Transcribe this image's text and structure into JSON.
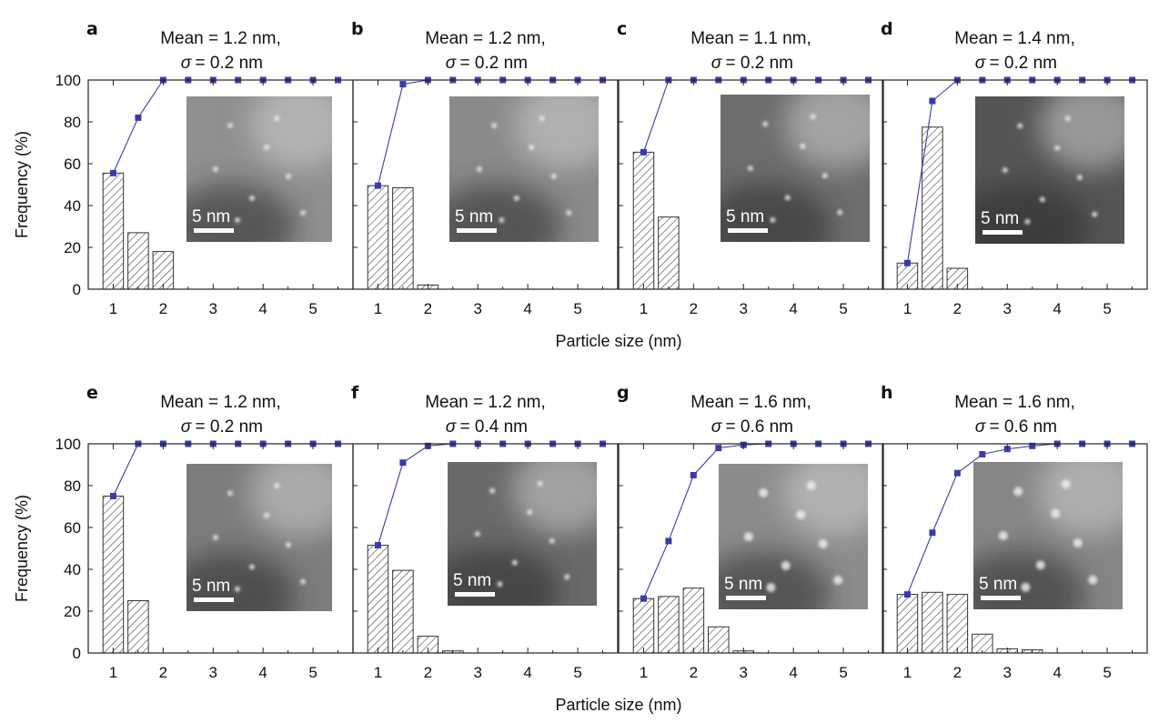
{
  "figure": {
    "ylabel": "Frequency (%)",
    "xlabel": "Particle size (nm)",
    "x_ticks": [
      1,
      2,
      3,
      4,
      5
    ],
    "y_ticks": [
      0,
      20,
      40,
      60,
      80,
      100
    ],
    "scale_bar_label": "5 nm",
    "colors": {
      "cumulative": "#3b3ba8",
      "bar_edge": "#333333"
    }
  },
  "chart_data": [
    {
      "panel": "a",
      "type": "bar",
      "title_line1": "Mean = 1.2 nm,",
      "title_line2": "= 0.2 nm",
      "title_symbol": "σ",
      "xlabel": "",
      "ylabel": "Frequency (%)",
      "xlim": [
        0.5,
        5.8
      ],
      "ylim": [
        0,
        100
      ],
      "bars": {
        "x": [
          1.0,
          1.5,
          2.0
        ],
        "values": [
          55.5,
          27,
          18
        ]
      },
      "cumulative": {
        "x": [
          1.0,
          1.5,
          2.0,
          2.5,
          3.0,
          3.5,
          4.0,
          4.5,
          5.0,
          5.5
        ],
        "values": [
          55.5,
          82,
          100,
          100,
          100,
          100,
          100,
          100,
          100,
          100
        ]
      },
      "inset": {
        "image": "HAADF-STEM micrograph",
        "shade": "#8f8f8f"
      }
    },
    {
      "panel": "b",
      "type": "bar",
      "title_line1": "Mean = 1.2 nm,",
      "title_line2": "= 0.2 nm",
      "title_symbol": "σ",
      "xlabel": "",
      "ylabel": "",
      "xlim": [
        0.5,
        5.8
      ],
      "ylim": [
        0,
        100
      ],
      "bars": {
        "x": [
          1.0,
          1.5,
          2.0
        ],
        "values": [
          49.5,
          48.5,
          2
        ]
      },
      "cumulative": {
        "x": [
          1.0,
          1.5,
          2.0,
          2.5,
          3.0,
          3.5,
          4.0,
          4.5,
          5.0,
          5.5
        ],
        "values": [
          49.5,
          98,
          100,
          100,
          100,
          100,
          100,
          100,
          100,
          100
        ]
      },
      "inset": {
        "image": "HAADF-STEM micrograph",
        "shade": "#8a8a8a"
      }
    },
    {
      "panel": "c",
      "type": "bar",
      "title_line1": "Mean = 1.1 nm,",
      "title_line2": "= 0.2 nm",
      "title_symbol": "σ",
      "xlabel": "",
      "ylabel": "",
      "xlim": [
        0.5,
        5.8
      ],
      "ylim": [
        0,
        100
      ],
      "bars": {
        "x": [
          1.0,
          1.5
        ],
        "values": [
          65.5,
          34.5
        ]
      },
      "cumulative": {
        "x": [
          1.0,
          1.5,
          2.0,
          2.5,
          3.0,
          3.5,
          4.0,
          4.5,
          5.0,
          5.5
        ],
        "values": [
          65.5,
          100,
          100,
          100,
          100,
          100,
          100,
          100,
          100,
          100
        ]
      },
      "inset": {
        "image": "HAADF-STEM micrograph",
        "shade": "#6e6e6e"
      }
    },
    {
      "panel": "d",
      "type": "bar",
      "title_line1": "Mean = 1.4 nm,",
      "title_line2": "= 0.2 nm",
      "title_symbol": "σ",
      "xlabel": "",
      "ylabel": "",
      "xlim": [
        0.5,
        5.8
      ],
      "ylim": [
        0,
        100
      ],
      "bars": {
        "x": [
          1.0,
          1.5,
          2.0
        ],
        "values": [
          12.5,
          77.5,
          10
        ]
      },
      "cumulative": {
        "x": [
          1.0,
          1.5,
          2.0,
          2.5,
          3.0,
          3.5,
          4.0,
          4.5,
          5.0,
          5.5
        ],
        "values": [
          12.5,
          90,
          100,
          100,
          100,
          100,
          100,
          100,
          100,
          100
        ]
      },
      "inset": {
        "image": "HAADF-STEM micrograph",
        "shade": "#555555"
      }
    },
    {
      "panel": "e",
      "type": "bar",
      "title_line1": "Mean = 1.2 nm,",
      "title_line2": "= 0.2 nm",
      "title_symbol": "σ",
      "xlabel": "",
      "ylabel": "Frequency (%)",
      "xlim": [
        0.5,
        5.8
      ],
      "ylim": [
        0,
        100
      ],
      "bars": {
        "x": [
          1.0,
          1.5
        ],
        "values": [
          75,
          25
        ]
      },
      "cumulative": {
        "x": [
          1.0,
          1.5,
          2.0,
          2.5,
          3.0,
          3.5,
          4.0,
          4.5,
          5.0,
          5.5
        ],
        "values": [
          75,
          100,
          100,
          100,
          100,
          100,
          100,
          100,
          100,
          100
        ]
      },
      "inset": {
        "image": "HAADF-STEM micrograph",
        "shade": "#7d7d7d"
      }
    },
    {
      "panel": "f",
      "type": "bar",
      "title_line1": "Mean = 1.2 nm,",
      "title_line2": "= 0.4 nm",
      "title_symbol": "σ",
      "xlabel": "",
      "ylabel": "",
      "xlim": [
        0.5,
        5.8
      ],
      "ylim": [
        0,
        100
      ],
      "bars": {
        "x": [
          1.0,
          1.5,
          2.0,
          2.5
        ],
        "values": [
          51.5,
          39.5,
          8,
          1
        ]
      },
      "cumulative": {
        "x": [
          1.0,
          1.5,
          2.0,
          2.5,
          3.0,
          3.5,
          4.0,
          4.5,
          5.0,
          5.5
        ],
        "values": [
          51.5,
          91,
          99,
          100,
          100,
          100,
          100,
          100,
          100,
          100
        ]
      },
      "inset": {
        "image": "HAADF-STEM micrograph",
        "shade": "#6a6a6a"
      }
    },
    {
      "panel": "g",
      "type": "bar",
      "title_line1": "Mean = 1.6 nm,",
      "title_line2": "= 0.6 nm",
      "title_symbol": "σ",
      "xlabel": "",
      "ylabel": "",
      "xlim": [
        0.5,
        5.8
      ],
      "ylim": [
        0,
        100
      ],
      "bars": {
        "x": [
          1.0,
          1.5,
          2.0,
          2.5,
          3.0
        ],
        "values": [
          26,
          27,
          31,
          12.5,
          1
        ]
      },
      "cumulative": {
        "x": [
          1.0,
          1.5,
          2.0,
          2.5,
          3.0,
          3.5,
          4.0,
          4.5,
          5.0,
          5.5
        ],
        "values": [
          26,
          53.5,
          85,
          98,
          99.5,
          100,
          100,
          100,
          100,
          100
        ]
      },
      "inset": {
        "image": "HAADF-STEM micrograph",
        "shade": "#8c8c8c"
      }
    },
    {
      "panel": "h",
      "type": "bar",
      "title_line1": "Mean = 1.6 nm,",
      "title_line2": "= 0.6 nm",
      "title_symbol": "σ",
      "xlabel": "",
      "ylabel": "",
      "xlim": [
        0.5,
        5.8
      ],
      "ylim": [
        0,
        100
      ],
      "bars": {
        "x": [
          1.0,
          1.5,
          2.0,
          2.5,
          3.0,
          3.5
        ],
        "values": [
          28,
          29,
          28,
          9,
          2,
          1.5
        ]
      },
      "cumulative": {
        "x": [
          1.0,
          1.5,
          2.0,
          2.5,
          3.0,
          3.5,
          4.0,
          4.5,
          5.0,
          5.5
        ],
        "values": [
          28,
          57.5,
          86,
          95,
          97.5,
          99,
          100,
          100,
          100,
          100
        ]
      },
      "inset": {
        "image": "HAADF-STEM micrograph",
        "shade": "#868686"
      }
    }
  ]
}
